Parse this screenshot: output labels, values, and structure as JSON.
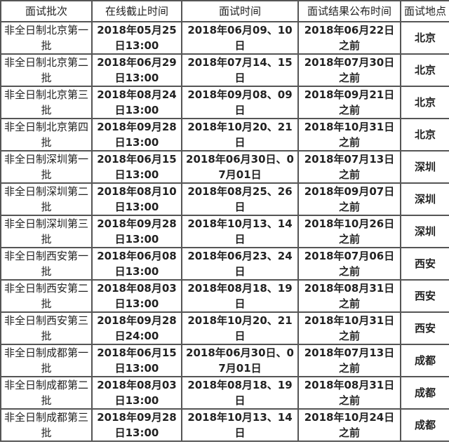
{
  "table": {
    "headers": [
      "面试批次",
      "在线截止时间",
      "面试时间",
      "面试结果公布时间",
      "面试地点"
    ],
    "rows": [
      [
        "非全日制北京第一批",
        "2018年05月25日13:00",
        "2018年06月09、10日",
        "2018年06月22日之前",
        "北京"
      ],
      [
        "非全日制北京第二批",
        "2018年06月29日13:00",
        "2018年07月14、15日",
        "2018年07月30日之前",
        "北京"
      ],
      [
        "非全日制北京第三批",
        "2018年08月24日13:00",
        "2018年09月08、09日",
        "2018年09月21日之前",
        "北京"
      ],
      [
        "非全日制北京第四批",
        "2018年09月28日13:00",
        "2018年10月20、21日",
        "2018年10月31日之前",
        "北京"
      ],
      [
        "非全日制深圳第一批",
        "2018年06月15日13:00",
        "2018年06月30日、07月01日",
        "2018年07月13日之前",
        "深圳"
      ],
      [
        "非全日制深圳第二批",
        "2018年08月10日13:00",
        "2018年08月25、26日",
        "2018年09月07日之前",
        "深圳"
      ],
      [
        "非全日制深圳第三批",
        "2018年09月28日13:00",
        "2018年10月13、14日",
        "2018年10月26日之前",
        "深圳"
      ],
      [
        "非全日制西安第一批",
        "2018年06月08日13:00",
        "2018年06月23、24日",
        "2018年07月06日之前",
        "西安"
      ],
      [
        "非全日制西安第二批",
        "2018年08月03日13:00",
        "2018年08月18、19日",
        "2018年08月31日之前",
        "西安"
      ],
      [
        "非全日制西安第三批",
        "2018年09月28日24:00",
        "2018年10月20、21日",
        "2018年10月31日之前",
        "西安"
      ],
      [
        "非全日制成都第一批",
        "2018年06月15日13:00",
        "2018年06月30日、07月01日",
        "2018年07月13日之前",
        "成都"
      ],
      [
        "非全日制成都第二批",
        "2018年08月03日13:00",
        "2018年08月18、19日",
        "2018年08月31日之前",
        "成都"
      ],
      [
        "非全日制成都第三批",
        "2018年09月28日13:00",
        "2018年10月13、14日",
        "2018年10月24日之前",
        "成都"
      ]
    ]
  }
}
